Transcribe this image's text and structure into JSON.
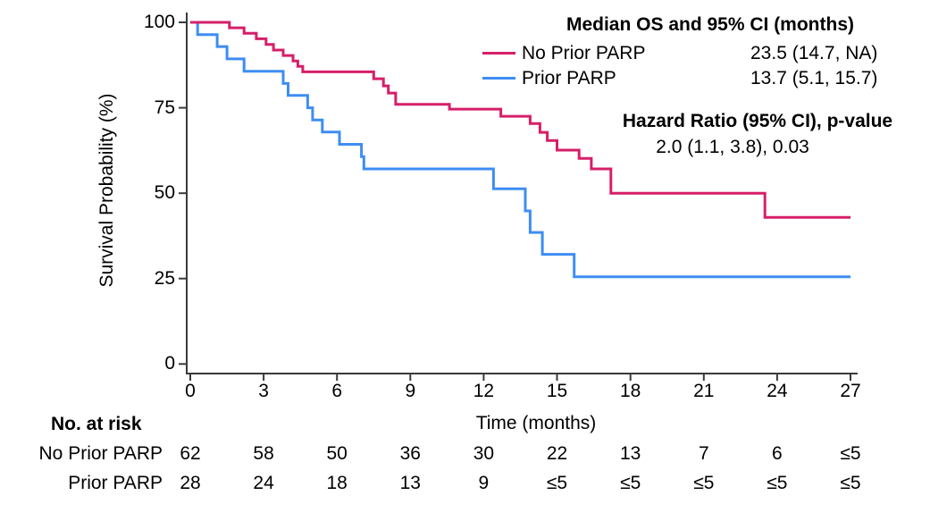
{
  "chart_data": {
    "type": "line",
    "subtype": "kaplan-meier-step",
    "ylabel": "Survival Probability (%)",
    "xlabel": "Time (months)",
    "xlim": [
      0,
      27
    ],
    "ylim": [
      0,
      100
    ],
    "xticks": [
      0,
      3,
      6,
      9,
      12,
      15,
      18,
      21,
      24,
      27
    ],
    "yticks": [
      0,
      25,
      50,
      75,
      100
    ],
    "grid": false,
    "legend_position": "top-right",
    "series": [
      {
        "name": "No Prior PARP",
        "color": "#D61F69",
        "median": "23.5 (14.7, NA)",
        "points": [
          [
            0,
            100
          ],
          [
            1.6,
            98.4
          ],
          [
            2.2,
            96.8
          ],
          [
            2.7,
            95.2
          ],
          [
            3.1,
            93.5
          ],
          [
            3.4,
            91.9
          ],
          [
            3.8,
            90.3
          ],
          [
            4.2,
            88.7
          ],
          [
            4.4,
            87.1
          ],
          [
            4.6,
            85.5
          ],
          [
            7.5,
            83.5
          ],
          [
            7.9,
            81.4
          ],
          [
            8.1,
            79.3
          ],
          [
            8.4,
            76.0
          ],
          [
            10.6,
            74.6
          ],
          [
            12.7,
            72.5
          ],
          [
            13.9,
            70.4
          ],
          [
            14.3,
            67.8
          ],
          [
            14.6,
            65.4
          ],
          [
            15.0,
            62.6
          ],
          [
            15.9,
            60.2
          ],
          [
            16.4,
            57.1
          ],
          [
            17.2,
            50.0
          ],
          [
            23.5,
            42.9
          ]
        ]
      },
      {
        "name": "Prior PARP",
        "color": "#3E8DF3",
        "median": "13.7 (5.1, 15.7)",
        "points": [
          [
            0,
            100
          ],
          [
            0.3,
            96.4
          ],
          [
            1.1,
            92.9
          ],
          [
            1.5,
            89.3
          ],
          [
            2.2,
            85.7
          ],
          [
            3.8,
            82.1
          ],
          [
            4.0,
            78.6
          ],
          [
            4.8,
            75.0
          ],
          [
            5.0,
            71.4
          ],
          [
            5.4,
            67.9
          ],
          [
            6.1,
            64.3
          ],
          [
            7.0,
            60.7
          ],
          [
            7.1,
            57.1
          ],
          [
            12.4,
            51.3
          ],
          [
            13.7,
            44.8
          ],
          [
            13.9,
            38.5
          ],
          [
            14.4,
            32.1
          ],
          [
            15.7,
            25.5
          ]
        ]
      }
    ],
    "risk_table": {
      "title": "No. at risk",
      "time_points": [
        0,
        3,
        6,
        9,
        12,
        15,
        18,
        21,
        24,
        27
      ],
      "rows": [
        {
          "label": "No Prior PARP",
          "counts": [
            "62",
            "58",
            "50",
            "36",
            "30",
            "22",
            "13",
            "7",
            "6",
            "≤5"
          ]
        },
        {
          "label": "Prior PARP",
          "counts": [
            "28",
            "24",
            "18",
            "13",
            "9",
            "≤5",
            "≤5",
            "≤5",
            "≤5",
            "≤5"
          ]
        }
      ]
    }
  },
  "legend": {
    "title": "Median OS and 95% CI (months)"
  },
  "hazard": {
    "title": "Hazard Ratio (95% CI), p-value",
    "value": "2.0 (1.1, 3.8), 0.03"
  },
  "colors": {
    "axis": "#3a3a3a",
    "text": "#000000"
  }
}
